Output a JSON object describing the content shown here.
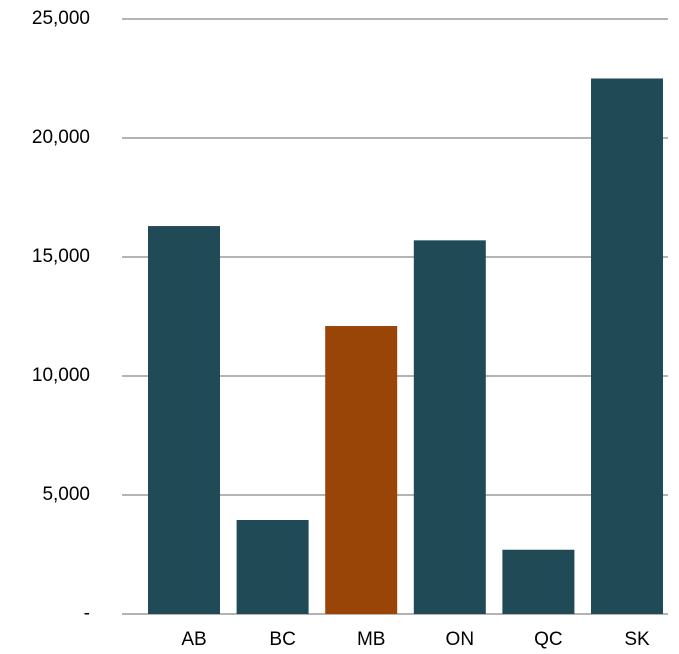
{
  "chart_data": {
    "type": "bar",
    "categories": [
      "AB",
      "BC",
      "MB",
      "ON",
      "QC",
      "SK"
    ],
    "values": [
      16300,
      3950,
      12100,
      15700,
      2700,
      22500
    ],
    "colors": [
      "#1f4a56",
      "#1f4a56",
      "#9a4508",
      "#1f4a56",
      "#1f4a56",
      "#1f4a56"
    ],
    "ylim": [
      0,
      25000
    ],
    "yticks": [
      {
        "value": 0,
        "label": "-"
      },
      {
        "value": 5000,
        "label": "5,000"
      },
      {
        "value": 10000,
        "label": "10,000"
      },
      {
        "value": 15000,
        "label": "15,000"
      },
      {
        "value": 20000,
        "label": "20,000"
      },
      {
        "value": 25000,
        "label": "25,000"
      }
    ],
    "grid": true
  }
}
